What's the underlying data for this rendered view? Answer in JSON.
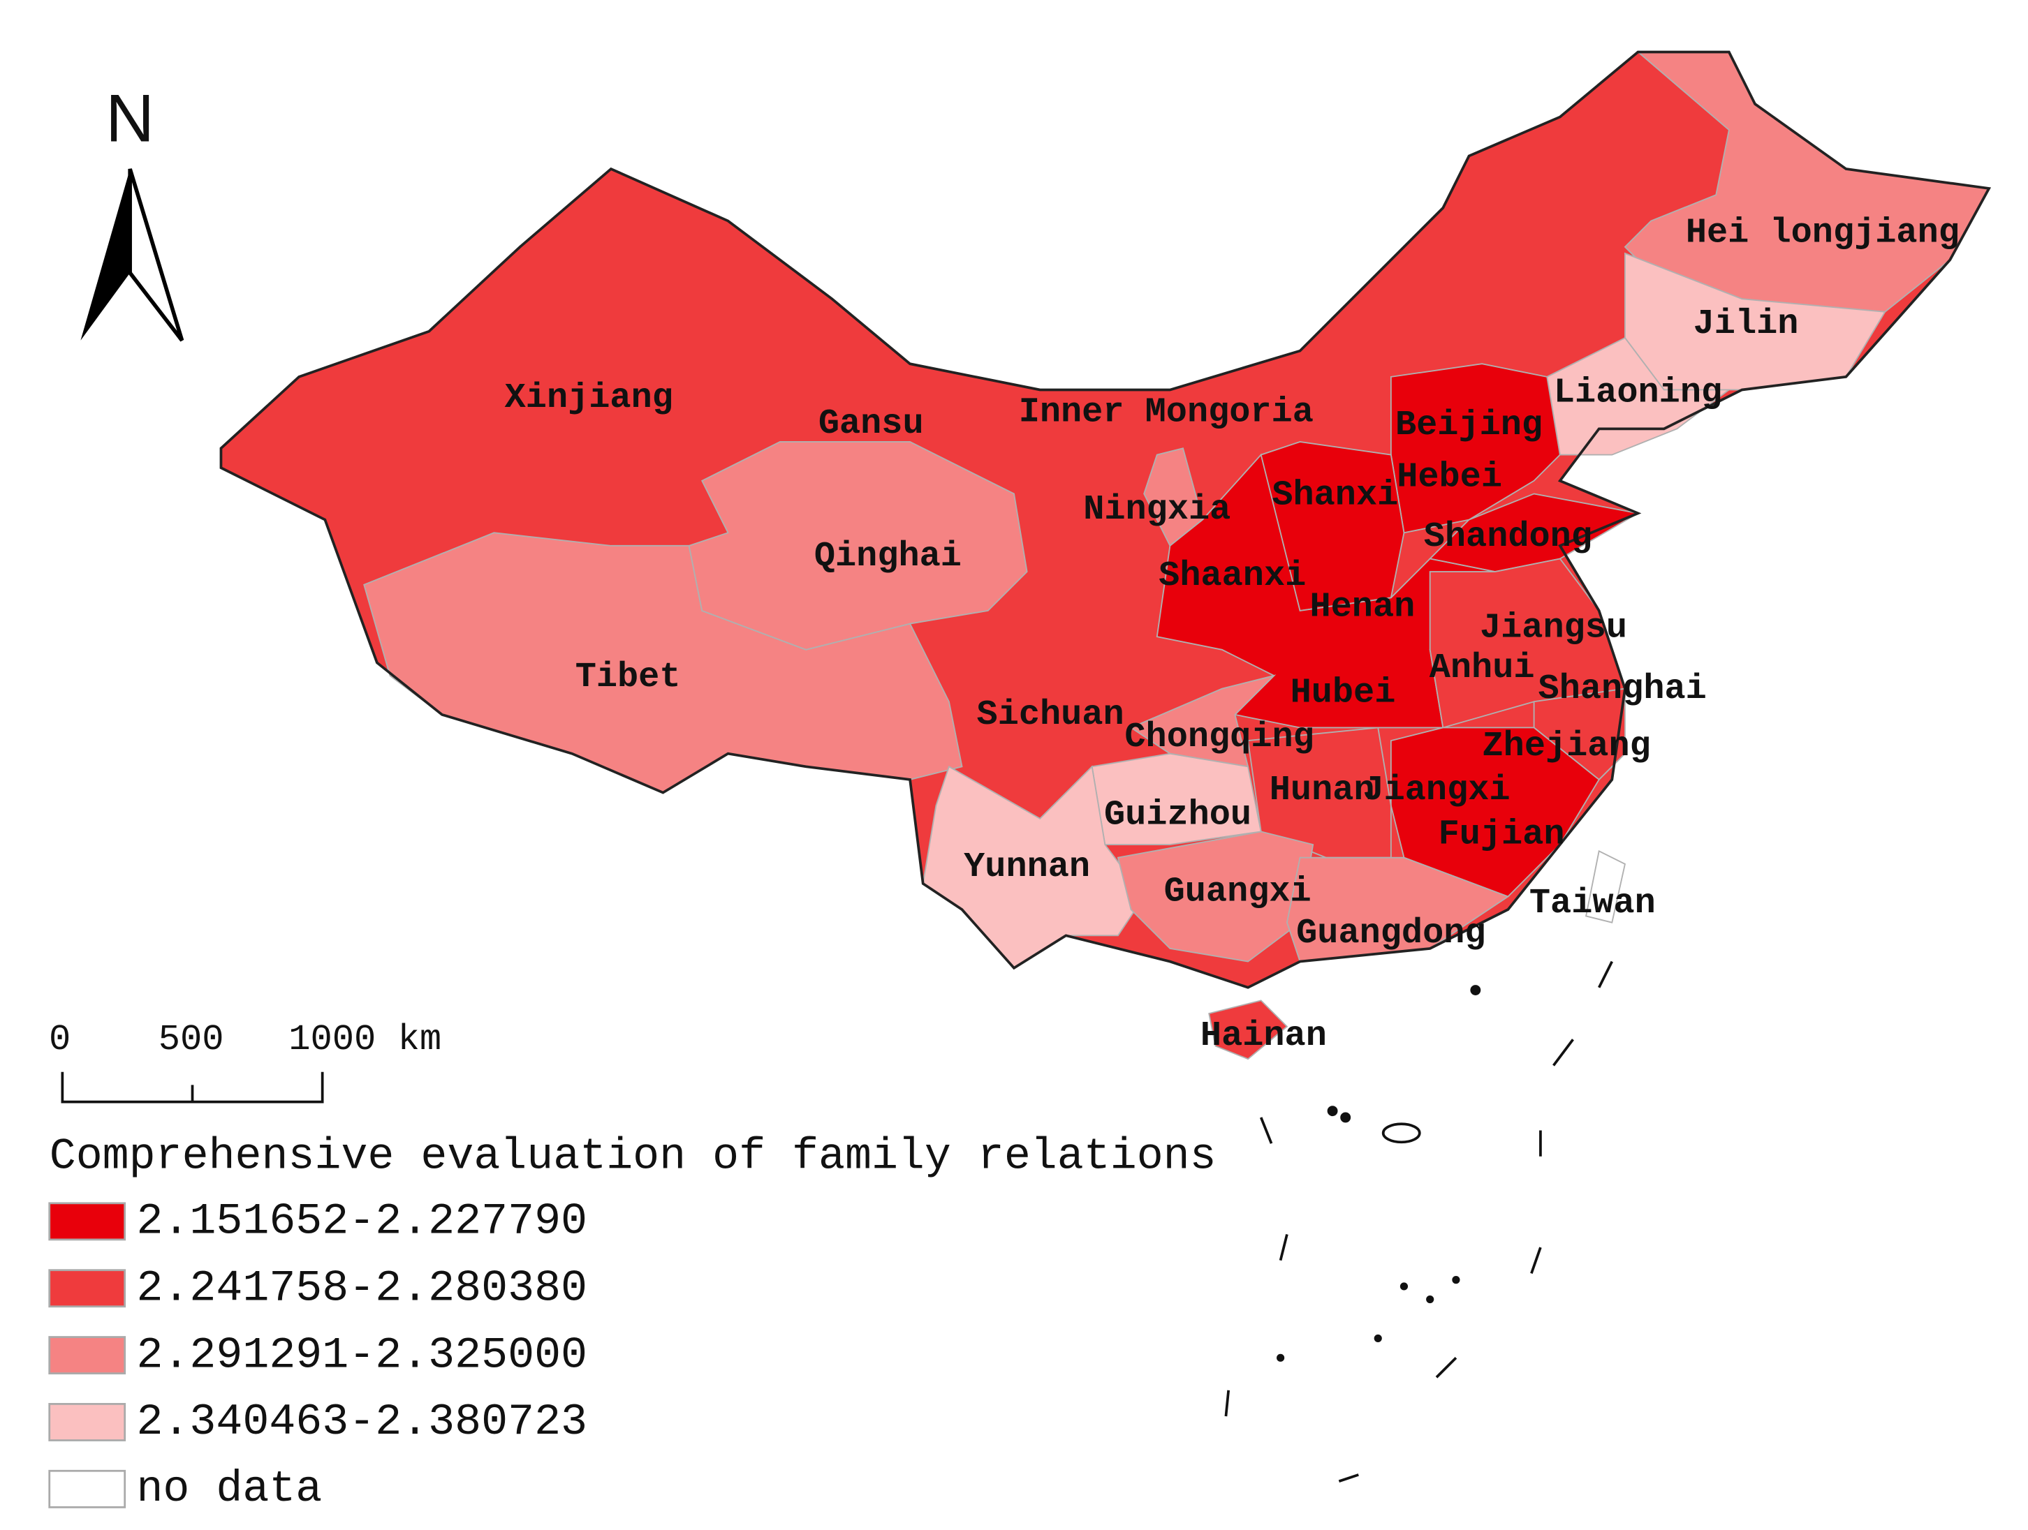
{
  "map": {
    "north_label": "N",
    "scale_bar": {
      "labels": [
        "0",
        "500",
        "1000 km"
      ]
    },
    "legend": {
      "title": "Comprehensive evaluation of family relations",
      "classes": [
        {
          "label": "2.151652-2.227790",
          "color": "#e8000b"
        },
        {
          "label": "2.241758-2.280380",
          "color": "#ef3b3d"
        },
        {
          "label": "2.291291-2.325000",
          "color": "#f58383"
        },
        {
          "label": "2.340463-2.380723",
          "color": "#fbc0c0"
        },
        {
          "label": "no data",
          "color": "#ffffff"
        }
      ]
    },
    "regions": [
      {
        "name": "Xinjiang",
        "class": 1
      },
      {
        "name": "Gansu",
        "class": 1
      },
      {
        "name": "Inner Mongoria",
        "class": 1
      },
      {
        "name": "Tibet",
        "class": 2
      },
      {
        "name": "Qinghai",
        "class": 2
      },
      {
        "name": "Hei longjiang",
        "class": 2
      },
      {
        "name": "Jilin",
        "class": 3
      },
      {
        "name": "Liaoning",
        "class": 3
      },
      {
        "name": "Beijing",
        "class": 0
      },
      {
        "name": "Hebei",
        "class": 0
      },
      {
        "name": "Shanxi",
        "class": 0
      },
      {
        "name": "Shandong",
        "class": 0
      },
      {
        "name": "Ningxia",
        "class": 2
      },
      {
        "name": "Shaanxi",
        "class": 0
      },
      {
        "name": "Henan",
        "class": 0
      },
      {
        "name": "Hubei",
        "class": 0
      },
      {
        "name": "Jiangsu",
        "class": 1
      },
      {
        "name": "Anhui",
        "class": 1
      },
      {
        "name": "Shanghai",
        "class": 1
      },
      {
        "name": "Zhejiang",
        "class": 1
      },
      {
        "name": "Jiangxi",
        "class": 0
      },
      {
        "name": "Fujian",
        "class": 0
      },
      {
        "name": "Hunan",
        "class": 1
      },
      {
        "name": "Sichuan",
        "class": 1
      },
      {
        "name": "Chongqing",
        "class": 2
      },
      {
        "name": "Guizhou",
        "class": 3
      },
      {
        "name": "Yunnan",
        "class": 3
      },
      {
        "name": "Guangxi",
        "class": 2
      },
      {
        "name": "Guangdong",
        "class": 2
      },
      {
        "name": "Hainan",
        "class": 1
      },
      {
        "name": "Taiwan",
        "class": 4
      }
    ]
  }
}
